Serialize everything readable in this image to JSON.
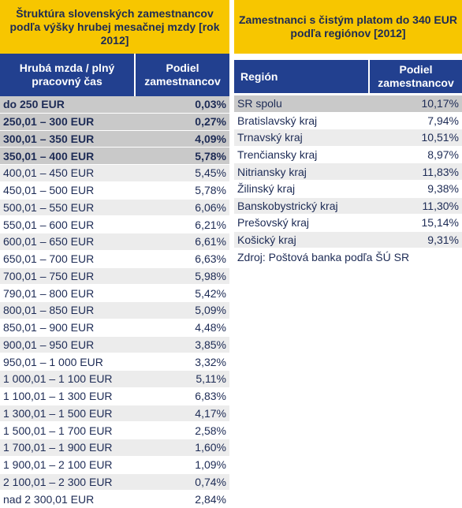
{
  "left": {
    "title": "Štruktúra slovenských zamestnancov podľa výšky hrubej mesačnej mzdy [rok 2012]",
    "headers": [
      "Hrubá mzda / plný pracovný čas",
      "Podiel zamestnancov"
    ],
    "rows": [
      [
        "do 250 EUR",
        "0,03%"
      ],
      [
        "250,01 – 300 EUR",
        "0,27%"
      ],
      [
        "300,01 – 350 EUR",
        "4,09%"
      ],
      [
        "350,01 – 400 EUR",
        "5,78%"
      ],
      [
        "400,01 – 450 EUR",
        "5,45%"
      ],
      [
        "450,01 – 500 EUR",
        "5,78%"
      ],
      [
        "500,01 – 550 EUR",
        "6,06%"
      ],
      [
        "550,01 – 600 EUR",
        "6,21%"
      ],
      [
        "600,01 – 650 EUR",
        "6,61%"
      ],
      [
        "650,01 – 700 EUR",
        "6,63%"
      ],
      [
        "700,01 – 750 EUR",
        "5,98%"
      ],
      [
        "790,01 – 800 EUR",
        "5,42%"
      ],
      [
        "800,01 – 850 EUR",
        "5,09%"
      ],
      [
        "850,01 – 900 EUR",
        "4,48%"
      ],
      [
        "900,01 – 950 EUR",
        "3,85%"
      ],
      [
        "950,01 – 1 000 EUR",
        "3,32%"
      ],
      [
        "1 000,01 – 1 100 EUR",
        "5,11%"
      ],
      [
        "1 100,01 – 1 300 EUR",
        "6,83%"
      ],
      [
        "1 300,01 – 1 500 EUR",
        "4,17%"
      ],
      [
        "1 500,01 – 1 700 EUR",
        "2,58%"
      ],
      [
        "1 700,01 – 1 900 EUR",
        "1,60%"
      ],
      [
        "1 900,01 – 2 100 EUR",
        "1,09%"
      ],
      [
        "2 100,01 – 2 300 EUR",
        "0,74%"
      ],
      [
        "nad 2 300,01 EUR",
        "2,84%"
      ]
    ]
  },
  "right": {
    "title": "Zamestnanci s čistým platom do 340 EUR podľa regiónov [2012]",
    "headers": [
      "Región",
      "Podiel zamestnancov"
    ],
    "rows": [
      [
        "SR spolu",
        "10,17%"
      ],
      [
        "Bratislavský kraj",
        "7,94%"
      ],
      [
        "Trnavský kraj",
        "10,51%"
      ],
      [
        "Trenčiansky kraj",
        "8,97%"
      ],
      [
        "Nitriansky kraj",
        "11,83%"
      ],
      [
        "Žilinský kraj",
        "9,38%"
      ],
      [
        "Banskobystrický kraj",
        "11,30%"
      ],
      [
        "Prešovský kraj",
        "15,14%"
      ],
      [
        "Košický kraj",
        "9,31%"
      ]
    ],
    "source": "Zdroj: Poštová banka podľa ŠÚ SR"
  }
}
